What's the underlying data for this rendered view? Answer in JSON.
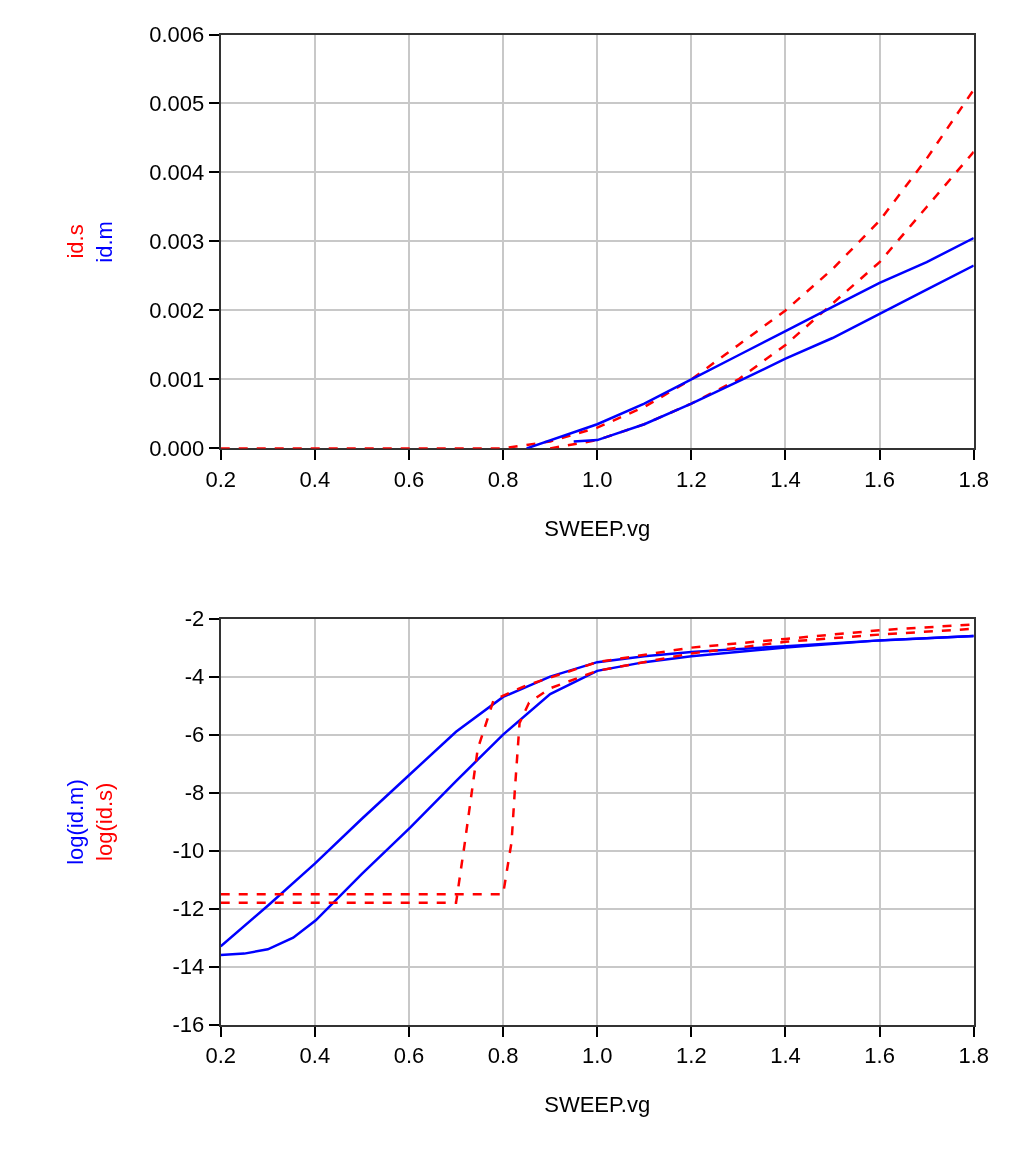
{
  "chart_data": [
    {
      "type": "line",
      "xlabel": "SWEEP.vg",
      "xlim": [
        0.2,
        1.8
      ],
      "xticks": [
        {
          "value": 0.2,
          "label": "0.2"
        },
        {
          "value": 0.4,
          "label": "0.4"
        },
        {
          "value": 0.6,
          "label": "0.6"
        },
        {
          "value": 0.8,
          "label": "0.8"
        },
        {
          "value": 1.0,
          "label": "1.0"
        },
        {
          "value": 1.2,
          "label": "1.2"
        },
        {
          "value": 1.4,
          "label": "1.4"
        },
        {
          "value": 1.6,
          "label": "1.6"
        },
        {
          "value": 1.8,
          "label": "1.8"
        }
      ],
      "ylim": [
        0,
        0.006
      ],
      "yticks": [
        {
          "value": 0,
          "label": "0.000"
        },
        {
          "value": 0.001,
          "label": "0.001"
        },
        {
          "value": 0.002,
          "label": "0.002"
        },
        {
          "value": 0.003,
          "label": "0.003"
        },
        {
          "value": 0.004,
          "label": "0.004"
        },
        {
          "value": 0.005,
          "label": "0.005"
        },
        {
          "value": 0.006,
          "label": "0.006"
        }
      ],
      "grid": true,
      "series": [
        {
          "name": "id.s",
          "color": "#ff0000",
          "line_style": "dashed",
          "x": [
            0.2,
            0.4,
            0.6,
            0.7,
            0.8,
            0.9,
            1.0,
            1.1,
            1.2,
            1.3,
            1.4,
            1.5,
            1.6,
            1.7,
            1.8
          ],
          "values": [
            0,
            0,
            0,
            0,
            0,
            0.0001,
            0.0003,
            0.0006,
            0.001,
            0.0015,
            0.002,
            0.0026,
            0.0033,
            0.0042,
            0.0052
          ]
        },
        {
          "color": "#ff0000",
          "line_style": "dashed",
          "x": [
            0.9,
            1.0,
            1.1,
            1.2,
            1.3,
            1.4,
            1.5,
            1.6,
            1.7,
            1.8
          ],
          "values": [
            0,
            0.00012,
            0.00035,
            0.00065,
            0.001,
            0.0015,
            0.0021,
            0.0027,
            0.0035,
            0.0043
          ]
        },
        {
          "name": "id.m",
          "color": "#0000ff",
          "line_style": "solid",
          "x": [
            0.85,
            1.0,
            1.1,
            1.2,
            1.3,
            1.4,
            1.5,
            1.6,
            1.7,
            1.8
          ],
          "values": [
            0,
            0.00035,
            0.00065,
            0.001,
            0.00135,
            0.0017,
            0.00205,
            0.0024,
            0.0027,
            0.00305
          ]
        },
        {
          "color": "#0000ff",
          "line_style": "solid",
          "x": [
            0.95,
            1.0,
            1.1,
            1.2,
            1.3,
            1.4,
            1.5,
            1.6,
            1.7,
            1.8
          ],
          "values": [
            0.0001,
            0.00012,
            0.00035,
            0.00065,
            0.00097,
            0.0013,
            0.0016,
            0.00195,
            0.0023,
            0.00265
          ]
        }
      ]
    },
    {
      "type": "line",
      "xlabel": "SWEEP.vg",
      "xlim": [
        0.2,
        1.8
      ],
      "xticks": [
        {
          "value": 0.2,
          "label": "0.2"
        },
        {
          "value": 0.4,
          "label": "0.4"
        },
        {
          "value": 0.6,
          "label": "0.6"
        },
        {
          "value": 0.8,
          "label": "0.8"
        },
        {
          "value": 1.0,
          "label": "1.0"
        },
        {
          "value": 1.2,
          "label": "1.2"
        },
        {
          "value": 1.4,
          "label": "1.4"
        },
        {
          "value": 1.6,
          "label": "1.6"
        },
        {
          "value": 1.8,
          "label": "1.8"
        }
      ],
      "ylim": [
        -16,
        -2
      ],
      "yticks": [
        -16,
        -14,
        -12,
        -10,
        -8,
        -6,
        -4,
        -2
      ],
      "grid": true,
      "series": [
        {
          "name": "log(id.m)",
          "color": "#0000ff",
          "line_style": "solid",
          "x": [
            0.2,
            0.3,
            0.4,
            0.5,
            0.6,
            0.7,
            0.8,
            0.9,
            1.0,
            1.1,
            1.2,
            1.4,
            1.6,
            1.8
          ],
          "values": [
            -13.3,
            -11.9,
            -10.45,
            -8.9,
            -7.4,
            -5.9,
            -4.7,
            -4.0,
            -3.5,
            -3.3,
            -3.15,
            -2.95,
            -2.75,
            -2.6
          ]
        },
        {
          "color": "#0000ff",
          "line_style": "solid",
          "x": [
            0.2,
            0.25,
            0.3,
            0.354,
            0.402,
            0.5,
            0.603,
            0.7,
            0.8,
            0.9,
            1.0,
            1.1,
            1.2,
            1.4,
            1.6,
            1.8
          ],
          "values": [
            -13.6,
            -13.55,
            -13.4,
            -13.0,
            -12.4,
            -10.8,
            -9.2,
            -7.6,
            -6.0,
            -4.6,
            -3.8,
            -3.5,
            -3.3,
            -3.0,
            -2.75,
            -2.6
          ]
        },
        {
          "name": "log(id.s)",
          "color": "#ff0000",
          "line_style": "dashed",
          "x": [
            0.2,
            0.7,
            0.718,
            0.746,
            0.78,
            0.85,
            1.0,
            1.2,
            1.4,
            1.6,
            1.8
          ],
          "values": [
            -11.8,
            -11.8,
            -9.8,
            -6.5,
            -4.8,
            -4.3,
            -3.5,
            -3.0,
            -2.7,
            -2.4,
            -2.2
          ]
        },
        {
          "color": "#ff0000",
          "line_style": "dashed",
          "x": [
            0.2,
            0.8,
            0.818,
            0.825,
            0.835,
            0.855,
            0.9,
            1.0,
            1.2,
            1.4,
            1.6,
            1.8
          ],
          "values": [
            -11.5,
            -11.5,
            -9.7,
            -7.9,
            -5.6,
            -4.9,
            -4.4,
            -3.8,
            -3.2,
            -2.8,
            -2.55,
            -2.35
          ]
        }
      ]
    }
  ]
}
